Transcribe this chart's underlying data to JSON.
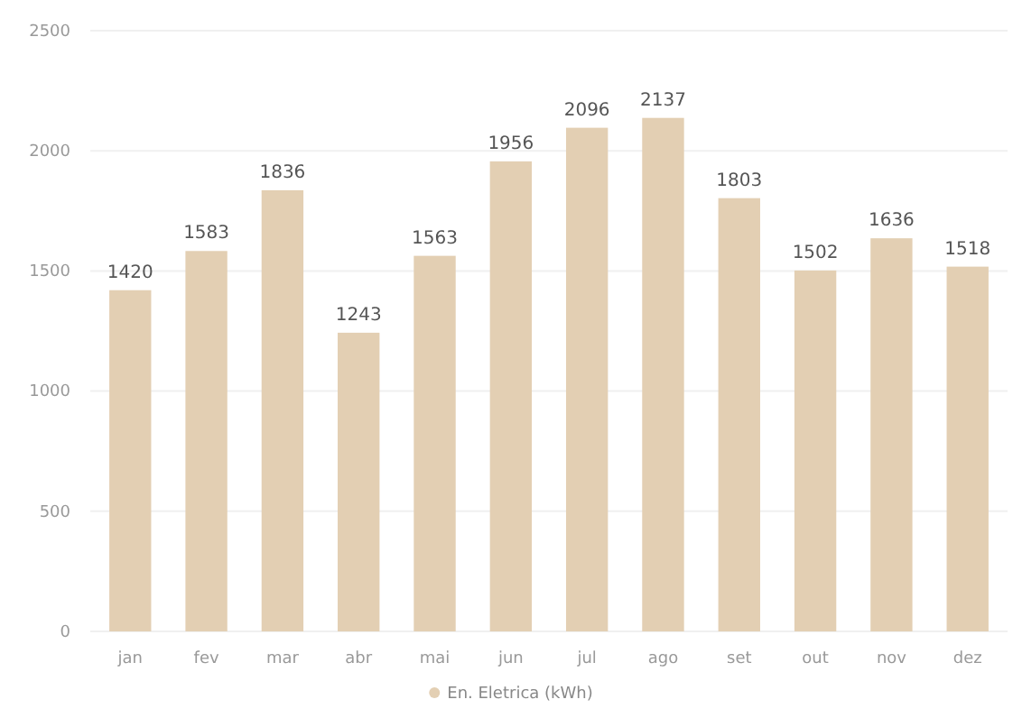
{
  "chart_data": {
    "type": "bar",
    "categories": [
      "jan",
      "fev",
      "mar",
      "abr",
      "mai",
      "jun",
      "jul",
      "ago",
      "set",
      "out",
      "nov",
      "dez"
    ],
    "series": [
      {
        "name": "En. Eletrica (kWh)",
        "color": "#e3cfb3",
        "values": [
          1420,
          1583,
          1836,
          1243,
          1563,
          1956,
          2096,
          2137,
          1803,
          1502,
          1636,
          1518
        ]
      }
    ],
    "ylim": [
      0,
      2500
    ],
    "yticks": [
      0,
      500,
      1000,
      1500,
      2000,
      2500
    ],
    "grid": "y",
    "data_labels": true,
    "legend": "bottom"
  }
}
